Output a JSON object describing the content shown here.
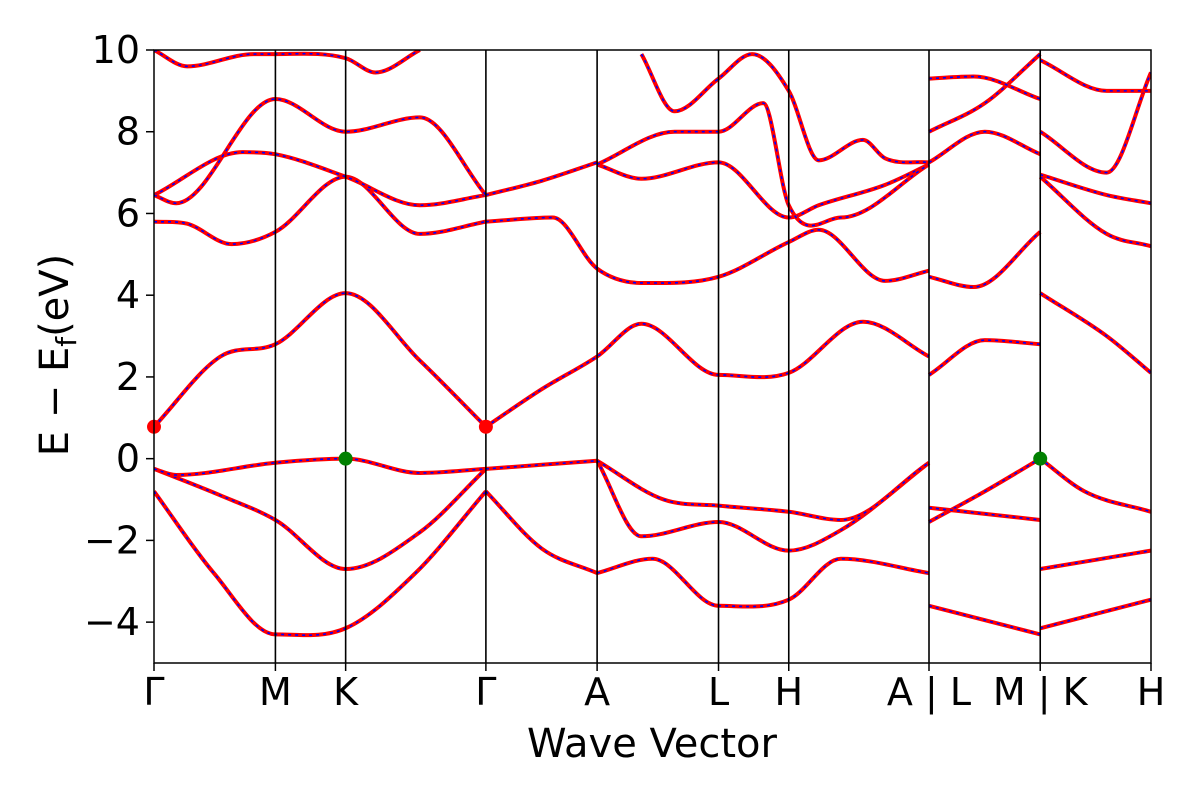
{
  "chart_data": {
    "type": "line",
    "xlabel": "Wave Vector",
    "ylabel": "E − E",
    "ylabel_sub": "f",
    "ylabel_unit": "(eV)",
    "ylim": [
      -5,
      10
    ],
    "yticks": [
      -4,
      -2,
      0,
      2,
      4,
      6,
      8,
      10
    ],
    "grid": false,
    "colors": {
      "solid": "#ff0000",
      "dashed": "#0000ff",
      "cbm": "#ff0000",
      "vbm": "#008000"
    },
    "kpoints": [
      {
        "label": "Γ",
        "x": 0.0
      },
      {
        "label": "M",
        "x": 0.548
      },
      {
        "label": "K",
        "x": 0.865
      },
      {
        "label": "Γ",
        "x": 1.498
      },
      {
        "label": "A",
        "x": 2.0
      },
      {
        "label": "L",
        "x": 2.548
      },
      {
        "label": "H",
        "x": 2.865
      },
      {
        "label": "A | L",
        "x": 3.498
      },
      {
        "label": "M | K",
        "x": 4.0
      },
      {
        "label": "H",
        "x": 4.5
      }
    ],
    "band_extrema": [
      {
        "name": "CBM",
        "x": 0.0,
        "y": 0.78
      },
      {
        "name": "CBM",
        "x": 1.498,
        "y": 0.78
      },
      {
        "name": "VBM",
        "x": 0.865,
        "y": 0.0
      },
      {
        "name": "VBM",
        "x": 4.0,
        "y": 0.0
      }
    ],
    "bands": [
      {
        "x": [
          0,
          0.27,
          0.548,
          0.865,
          1.18,
          1.498
        ],
        "y": [
          -0.8,
          -2.8,
          -4.3,
          -4.15,
          -2.8,
          -0.8
        ]
      },
      {
        "x": [
          1.498,
          1.75,
          2.0
        ],
        "y": [
          -0.8,
          -2.2,
          -2.8
        ]
      },
      {
        "x": [
          2.0,
          2.25,
          2.548,
          2.865,
          3.1,
          3.498
        ],
        "y": [
          -2.8,
          -2.45,
          -3.6,
          -3.45,
          -2.45,
          -2.8
        ]
      },
      {
        "x": [
          0,
          0.3,
          0.548,
          0.865,
          1.2,
          1.498
        ],
        "y": [
          -0.25,
          -0.9,
          -1.5,
          -2.7,
          -1.8,
          -0.25
        ]
      },
      {
        "x": [
          1.498,
          1.75,
          2.0
        ],
        "y": [
          -0.25,
          -0.15,
          -0.05
        ]
      },
      {
        "x": [
          2.0,
          2.2,
          2.548,
          2.865,
          3.1,
          3.498
        ],
        "y": [
          -0.05,
          -1.9,
          -1.55,
          -2.25,
          -1.75,
          -0.1
        ]
      },
      {
        "x": [
          0,
          0.1,
          0.548,
          0.865,
          1.2,
          1.498
        ],
        "y": [
          -0.25,
          -0.4,
          -0.1,
          0.0,
          -0.35,
          -0.25
        ]
      },
      {
        "x": [
          2.0,
          2.3,
          2.548,
          2.865,
          3.1,
          3.498
        ],
        "y": [
          -0.05,
          -1.0,
          -1.15,
          -1.3,
          -1.5,
          -0.1
        ]
      },
      {
        "x": [
          0,
          0.3,
          0.548,
          0.865,
          1.2,
          1.498
        ],
        "y": [
          0.78,
          2.5,
          2.8,
          4.05,
          2.4,
          0.78
        ]
      },
      {
        "x": [
          1.498,
          1.75,
          2.0,
          2.2,
          2.548,
          2.865,
          3.2,
          3.498
        ],
        "y": [
          0.78,
          1.7,
          2.5,
          3.3,
          2.05,
          2.1,
          3.35,
          2.5
        ]
      },
      {
        "x": [
          0,
          0.15,
          0.35,
          0.548,
          0.865,
          1.2,
          1.498
        ],
        "y": [
          5.8,
          5.75,
          5.25,
          5.55,
          6.9,
          5.5,
          5.8
        ]
      },
      {
        "x": [
          1.498,
          1.8,
          2.0,
          2.2,
          2.548,
          2.865,
          3.0,
          3.3,
          3.498
        ],
        "y": [
          5.8,
          5.9,
          4.65,
          4.3,
          4.45,
          5.3,
          5.6,
          4.35,
          4.6
        ]
      },
      {
        "x": [
          0,
          0.4,
          0.548,
          0.865,
          1.2,
          1.498
        ],
        "y": [
          6.45,
          7.5,
          7.45,
          6.9,
          6.2,
          6.45
        ]
      },
      {
        "x": [
          1.498,
          1.75,
          2.0
        ],
        "y": [
          6.45,
          6.8,
          7.25
        ]
      },
      {
        "x": [
          2.0,
          2.2,
          2.548,
          2.865,
          3.0,
          3.3,
          3.498
        ],
        "y": [
          7.2,
          6.85,
          7.25,
          5.9,
          6.2,
          6.7,
          7.2
        ]
      },
      {
        "x": [
          0,
          0.1,
          0.548,
          0.865,
          1.2,
          1.498
        ],
        "y": [
          6.45,
          6.25,
          8.8,
          8.0,
          8.35,
          6.45
        ]
      },
      {
        "x": [
          2.0,
          2.35,
          2.548,
          2.75,
          2.865,
          3.1,
          3.498
        ],
        "y": [
          7.2,
          8.0,
          8.0,
          8.7,
          6.2,
          5.9,
          7.2
        ]
      },
      {
        "x": [
          0,
          0.15,
          0.45,
          0.548,
          0.865,
          1.0,
          1.2
        ],
        "y": [
          10,
          9.6,
          9.9,
          9.9,
          9.8,
          9.45,
          10
        ]
      },
      {
        "x": [
          2.2,
          2.35,
          2.548,
          2.7,
          2.865,
          3.0,
          3.2,
          3.3,
          3.498
        ],
        "y": [
          9.9,
          8.5,
          9.3,
          9.9,
          9.0,
          7.3,
          7.8,
          7.35,
          7.25
        ]
      },
      {
        "x": [
          3.498,
          3.75,
          4.0
        ],
        "y": [
          -1.55,
          -0.8,
          0.0
        ]
      },
      {
        "x": [
          3.498,
          4.0
        ],
        "y": [
          -1.2,
          -1.5
        ]
      },
      {
        "x": [
          3.498,
          4.0
        ],
        "y": [
          -3.6,
          -4.3
        ]
      },
      {
        "x": [
          3.498,
          3.75,
          4.0
        ],
        "y": [
          2.05,
          2.9,
          2.8
        ]
      },
      {
        "x": [
          3.498,
          3.7,
          4.0
        ],
        "y": [
          4.45,
          4.2,
          5.55
        ]
      },
      {
        "x": [
          3.498,
          3.75,
          4.0
        ],
        "y": [
          7.25,
          8.0,
          7.45
        ]
      },
      {
        "x": [
          3.498,
          3.75,
          4.0
        ],
        "y": [
          8.0,
          8.7,
          9.9
        ]
      },
      {
        "x": [
          3.498,
          3.7,
          4.0
        ],
        "y": [
          9.3,
          9.35,
          8.8
        ]
      },
      {
        "x": [
          4.0,
          4.2,
          4.5
        ],
        "y": [
          0.0,
          -0.8,
          -1.3
        ]
      },
      {
        "x": [
          4.0,
          4.5
        ],
        "y": [
          -2.7,
          -2.25
        ]
      },
      {
        "x": [
          4.0,
          4.5
        ],
        "y": [
          -4.15,
          -3.45
        ]
      },
      {
        "x": [
          4.0,
          4.3,
          4.5
        ],
        "y": [
          4.05,
          3.0,
          2.1
        ]
      },
      {
        "x": [
          4.0,
          4.3,
          4.5
        ],
        "y": [
          6.9,
          5.5,
          5.2
        ]
      },
      {
        "x": [
          4.0,
          4.3,
          4.5
        ],
        "y": [
          6.95,
          6.45,
          6.25
        ]
      },
      {
        "x": [
          4.0,
          4.3,
          4.5
        ],
        "y": [
          8.0,
          7.0,
          9.45
        ]
      },
      {
        "x": [
          4.0,
          4.3,
          4.5
        ],
        "y": [
          9.75,
          9.0,
          9.0
        ]
      }
    ]
  }
}
